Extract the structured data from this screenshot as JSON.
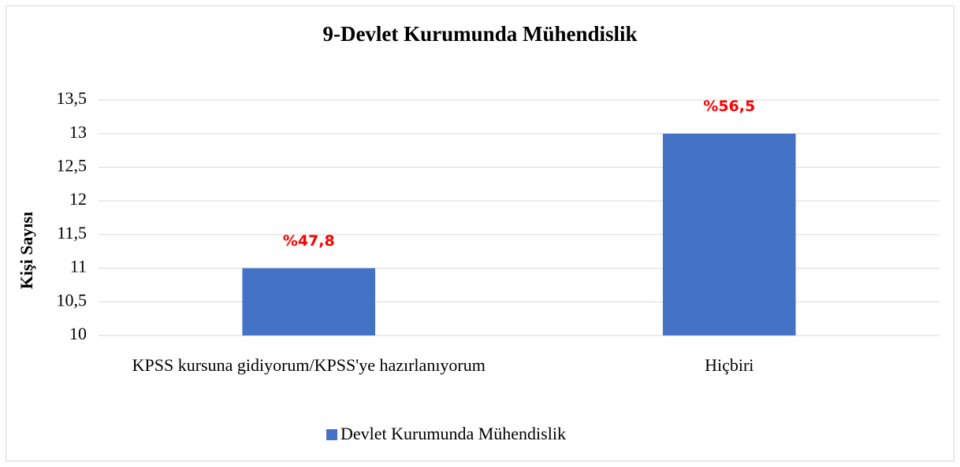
{
  "chart_data": {
    "type": "bar",
    "title": "9-Devlet Kurumunda Mühendislik",
    "y_label": "Kişi Sayısı",
    "categories": [
      "KPSS kursuna gidiyorum/KPSS'ye hazırlanıyorum",
      "Hiçbiri"
    ],
    "series": [
      {
        "name": "Devlet Kurumunda Mühendislik",
        "color": "#4472c4",
        "values": [
          11,
          13
        ]
      }
    ],
    "annotations": [
      "%47,8",
      "%56,5"
    ],
    "annotation_color": "#ff0000",
    "ylim": [
      10,
      13.5
    ],
    "yticks": [
      10,
      {
        "value": 10.5,
        "label": "10,5"
      },
      11,
      {
        "value": 11.5,
        "label": "11,5"
      },
      12,
      {
        "value": 12.5,
        "label": "12,5"
      },
      13,
      {
        "value": 13.5,
        "label": "13,5"
      }
    ],
    "grid": true,
    "legend": "bottom"
  }
}
